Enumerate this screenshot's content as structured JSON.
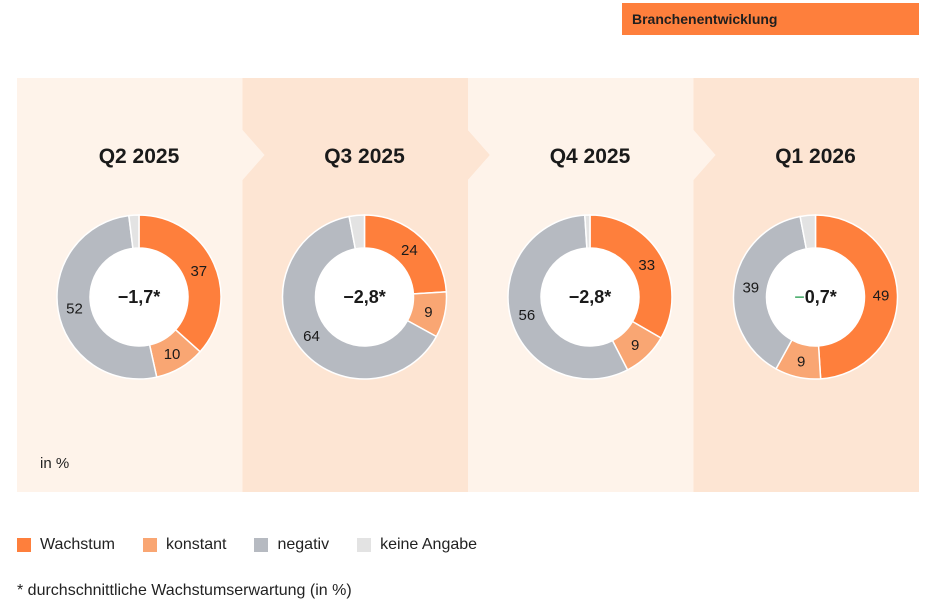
{
  "header": {
    "title": "Branchenentwicklung"
  },
  "colors": {
    "wachstum": "#fe7f3c",
    "konstant": "#f9a673",
    "negativ": "#b6bac1",
    "keine_angabe": "#e3e3e3",
    "panel_light": "#fef3ea",
    "panel_dark": "#fde5d3",
    "center_minus_green": "#1f9a4a"
  },
  "unit_note": "in %",
  "legend": [
    {
      "label": "Wachstum",
      "key": "wachstum"
    },
    {
      "label": "konstant",
      "key": "konstant"
    },
    {
      "label": "negativ",
      "key": "negativ"
    },
    {
      "label": "keine Angabe",
      "key": "keine_angabe"
    }
  ],
  "footnote": "* durchschnittliche Wachstumserwartung (in %)",
  "chart_data": [
    {
      "type": "pie",
      "title": "Q2 2025",
      "center_label": "−1,7*",
      "categories": [
        "Wachstum",
        "konstant",
        "negativ",
        "keine Angabe"
      ],
      "values": [
        37,
        10,
        52,
        2
      ],
      "data_labels": [
        "37",
        "10",
        "52",
        ""
      ]
    },
    {
      "type": "pie",
      "title": "Q3 2025",
      "center_label": "−2,8*",
      "categories": [
        "Wachstum",
        "konstant",
        "negativ",
        "keine Angabe"
      ],
      "values": [
        24,
        9,
        64,
        3
      ],
      "data_labels": [
        "24",
        "9",
        "64",
        ""
      ]
    },
    {
      "type": "pie",
      "title": "Q4 2025",
      "center_label": "−2,8*",
      "categories": [
        "Wachstum",
        "konstant",
        "negativ",
        "keine Angabe"
      ],
      "values": [
        33,
        9,
        56,
        1
      ],
      "data_labels": [
        "33",
        "9",
        "56",
        ""
      ]
    },
    {
      "type": "pie",
      "title": "Q1 2026",
      "center_label": "−0,7*",
      "center_minus_colored": true,
      "categories": [
        "Wachstum",
        "konstant",
        "negativ",
        "keine Angabe"
      ],
      "values": [
        49,
        9,
        39,
        3
      ],
      "data_labels": [
        "49",
        "9",
        "39",
        ""
      ]
    }
  ]
}
